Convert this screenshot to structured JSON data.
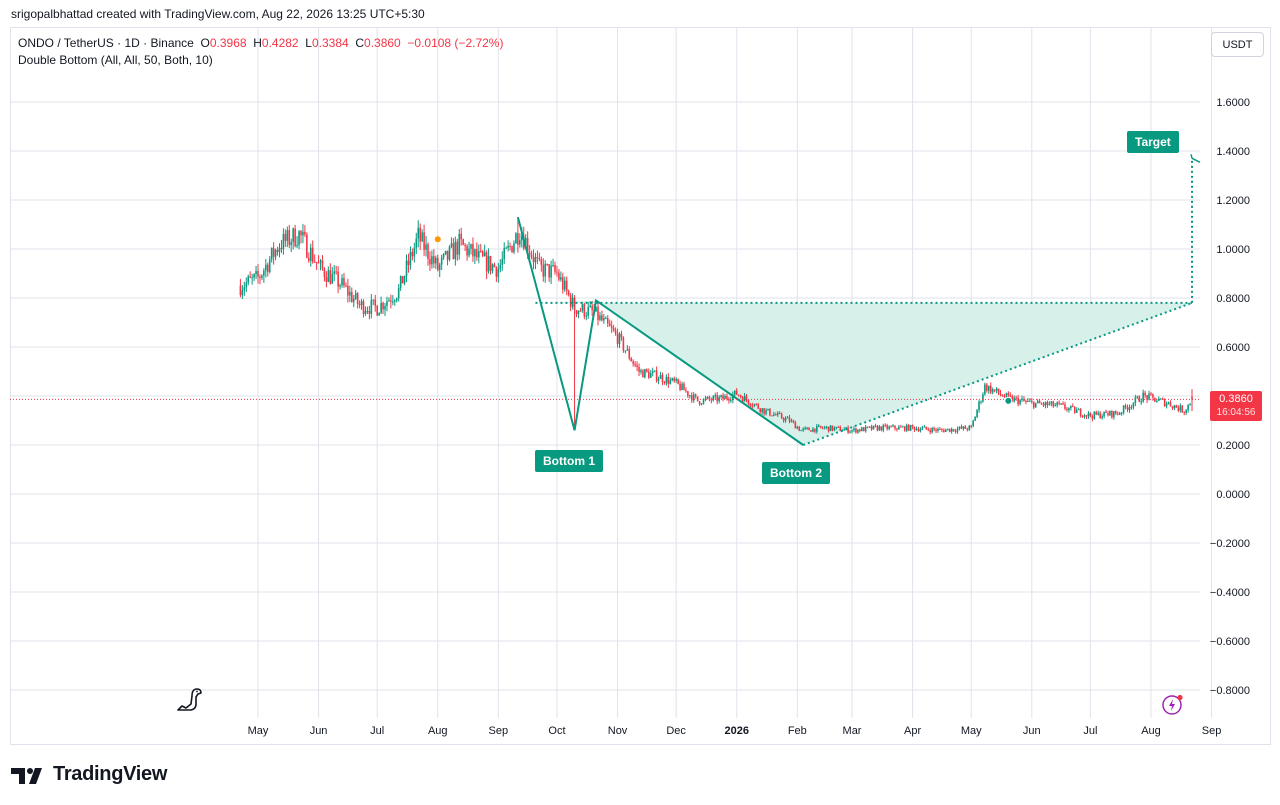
{
  "byline": "srigopalbhattad created with TradingView.com, Aug 22, 2026 13:25 UTC+5:30",
  "legend": {
    "symbol": "ONDO / TetherUS · 1D · Binance",
    "o_label": "O",
    "o_value": "0.3968",
    "h_label": "H",
    "h_value": "0.4282",
    "l_label": "L",
    "l_value": "0.3384",
    "c_label": "C",
    "c_value": "0.3860",
    "change": "−0.0108 (−2.72%)",
    "indicator": "Double Bottom (All, All, 50, Both, 10)"
  },
  "currency_button": "USDT",
  "price_tag": {
    "price": "0.3860",
    "countdown": "16:04:56"
  },
  "pattern_labels": {
    "bottom1": "Bottom 1",
    "bottom2": "Bottom 2",
    "target": "Target"
  },
  "brand": "TradingView",
  "colors": {
    "up": "#089981",
    "down": "#f23645",
    "pattern": "#089981",
    "pattern_fill": "#d5efe9",
    "grid": "#e0e3eb"
  },
  "icons": {
    "logo": "tradingview-logo-icon",
    "dino": "dinosaur-icon",
    "lightning": "lightning-icon"
  },
  "chart_data": {
    "type": "candlestick",
    "symbol": "ONDO / TetherUS",
    "interval": "1D",
    "exchange": "Binance",
    "y_ticks": [
      "1.6000",
      "1.4000",
      "1.2000",
      "1.0000",
      "0.8000",
      "0.6000",
      "0.4000",
      "0.2000",
      "0.0000",
      "−0.2000",
      "−0.4000",
      "−0.6000",
      "−0.8000"
    ],
    "x_ticks": [
      "May",
      "Jun",
      "Jul",
      "Aug",
      "Sep",
      "Oct",
      "Nov",
      "Dec",
      "2026",
      "Feb",
      "Mar",
      "Apr",
      "May",
      "Jun",
      "Jul",
      "Aug",
      "Sep"
    ],
    "ylim": [
      -0.8,
      1.6
    ],
    "grid": true,
    "close_series": [
      {
        "date": "2025-04-22",
        "close": 0.85
      },
      {
        "date": "2025-05-01",
        "close": 0.88
      },
      {
        "date": "2025-05-12",
        "close": 1.02
      },
      {
        "date": "2025-05-22",
        "close": 1.06
      },
      {
        "date": "2025-06-02",
        "close": 0.92
      },
      {
        "date": "2025-06-12",
        "close": 0.86
      },
      {
        "date": "2025-06-22",
        "close": 0.77
      },
      {
        "date": "2025-07-01",
        "close": 0.76
      },
      {
        "date": "2025-07-12",
        "close": 0.83
      },
      {
        "date": "2025-07-22",
        "close": 1.05
      },
      {
        "date": "2025-08-01",
        "close": 0.92
      },
      {
        "date": "2025-08-12",
        "close": 1.02
      },
      {
        "date": "2025-08-22",
        "close": 0.96
      },
      {
        "date": "2025-09-01",
        "close": 0.92
      },
      {
        "date": "2025-09-12",
        "close": 1.08
      },
      {
        "date": "2025-09-22",
        "close": 0.92
      },
      {
        "date": "2025-10-01",
        "close": 0.9
      },
      {
        "date": "2025-10-10",
        "close": 0.76
      },
      {
        "date": "2025-10-20",
        "close": 0.74
      },
      {
        "date": "2025-11-01",
        "close": 0.64
      },
      {
        "date": "2025-11-12",
        "close": 0.5
      },
      {
        "date": "2025-11-22",
        "close": 0.48
      },
      {
        "date": "2025-12-01",
        "close": 0.45
      },
      {
        "date": "2025-12-12",
        "close": 0.38
      },
      {
        "date": "2025-12-25",
        "close": 0.39
      },
      {
        "date": "2026-01-01",
        "close": 0.41
      },
      {
        "date": "2026-01-15",
        "close": 0.34
      },
      {
        "date": "2026-01-28",
        "close": 0.3
      },
      {
        "date": "2026-02-03",
        "close": 0.26
      },
      {
        "date": "2026-02-15",
        "close": 0.27
      },
      {
        "date": "2026-03-01",
        "close": 0.26
      },
      {
        "date": "2026-03-15",
        "close": 0.27
      },
      {
        "date": "2026-04-01",
        "close": 0.27
      },
      {
        "date": "2026-04-15",
        "close": 0.26
      },
      {
        "date": "2026-05-01",
        "close": 0.27
      },
      {
        "date": "2026-05-08",
        "close": 0.44
      },
      {
        "date": "2026-05-20",
        "close": 0.39
      },
      {
        "date": "2026-06-01",
        "close": 0.37
      },
      {
        "date": "2026-06-15",
        "close": 0.36
      },
      {
        "date": "2026-07-01",
        "close": 0.32
      },
      {
        "date": "2026-07-15",
        "close": 0.33
      },
      {
        "date": "2026-07-28",
        "close": 0.4
      },
      {
        "date": "2026-08-10",
        "close": 0.37
      },
      {
        "date": "2026-08-18",
        "close": 0.34
      },
      {
        "date": "2026-08-22",
        "close": 0.386
      }
    ],
    "last": {
      "open": 0.3968,
      "high": 0.4282,
      "low": 0.3384,
      "close": 0.386
    },
    "pattern": {
      "name": "Double Bottom",
      "points": [
        {
          "label": "",
          "date": "2025-09-11",
          "price": 1.13
        },
        {
          "label": "Bottom 1",
          "date": "2025-10-10",
          "price": 0.26
        },
        {
          "label": "",
          "date": "2025-10-21",
          "price": 0.79
        },
        {
          "label": "Bottom 2",
          "date": "2026-02-04",
          "price": 0.2
        }
      ],
      "neckline": 0.78,
      "neckline_start": "2025-09-20",
      "projection_end": "2026-08-22",
      "target": 1.37
    }
  }
}
